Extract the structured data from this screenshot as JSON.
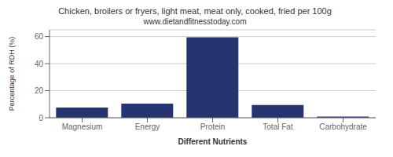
{
  "chart_data": {
    "type": "bar",
    "title": "Chicken, broilers or fryers, light meat, meat only, cooked, fried per 100g",
    "subtitle": "www.dietandfitnesstoday.com",
    "xlabel": "Different Nutrients",
    "ylabel": "Percentage of RDH (%)",
    "categories": [
      "Magnesium",
      "Energy",
      "Protein",
      "Total Fat",
      "Carbohydrate"
    ],
    "values": [
      7.5,
      10.5,
      59.5,
      9.5,
      0.8
    ],
    "color": "#263472",
    "ylim": [
      0,
      65
    ],
    "yticks": [
      0,
      20,
      40,
      60
    ],
    "grid": true
  }
}
